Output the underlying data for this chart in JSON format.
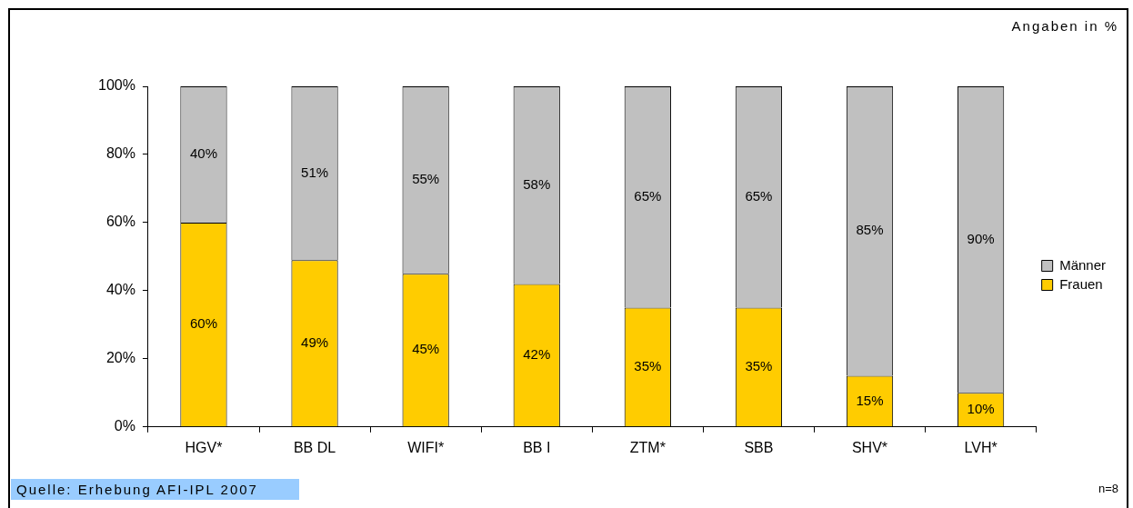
{
  "chart_data": {
    "type": "bar",
    "stacked": true,
    "categories": [
      "HGV*",
      "BB DL",
      "WIFI*",
      "BB I",
      "ZTM*",
      "SBB",
      "SHV*",
      "LVH*"
    ],
    "series": [
      {
        "name": "Frauen",
        "color": "#ffcc00",
        "values": [
          60,
          49,
          45,
          42,
          35,
          35,
          15,
          10
        ],
        "value_labels": [
          "60%",
          "49%",
          "45%",
          "42%",
          "35%",
          "35%",
          "15%",
          "10%"
        ]
      },
      {
        "name": "Männer",
        "color": "#c0c0c0",
        "values": [
          40,
          51,
          55,
          58,
          65,
          65,
          85,
          90
        ],
        "value_labels": [
          "40%",
          "51%",
          "55%",
          "58%",
          "65%",
          "65%",
          "85%",
          "90%"
        ]
      }
    ],
    "ylim": [
      0,
      100
    ],
    "yticks": [
      {
        "value": 0,
        "label": "0%"
      },
      {
        "value": 20,
        "label": "20%"
      },
      {
        "value": 40,
        "label": "40%"
      },
      {
        "value": 60,
        "label": "60%"
      },
      {
        "value": 80,
        "label": "80%"
      },
      {
        "value": 100,
        "label": "100%"
      }
    ],
    "grid": false,
    "legend": "right",
    "annotations": [
      "Angaben in %",
      "Quelle: Erhebung AFI-IPL 2007",
      "n=8"
    ]
  }
}
